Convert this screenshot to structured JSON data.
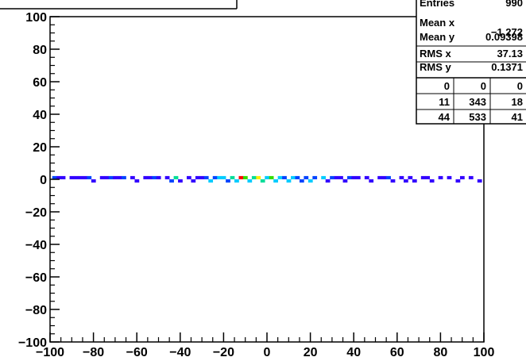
{
  "chart_data": {
    "type": "heatmap",
    "title": "",
    "xlabel": "",
    "ylabel": "",
    "xlim": [
      -100,
      100
    ],
    "ylim": [
      -100,
      100
    ],
    "x_ticks": [
      -100,
      -80,
      -60,
      -40,
      -20,
      0,
      20,
      40,
      60,
      80,
      100
    ],
    "y_ticks": [
      -100,
      -80,
      -60,
      -40,
      -20,
      0,
      20,
      40,
      60,
      80,
      100
    ],
    "x_tick_labels": [
      "−100",
      "−80",
      "−60",
      "−40",
      "−20",
      "0",
      "20",
      "40",
      "60",
      "80",
      "100"
    ],
    "y_tick_labels": [
      "−100",
      "−80",
      "−60",
      "−40",
      "−20",
      "0",
      "20",
      "40",
      "60",
      "80",
      "100"
    ],
    "grid": false,
    "bin_width": 2,
    "bin_height": 2,
    "color_scale": [
      "#3300ff",
      "#0044ff",
      "#00ccff",
      "#00dd99",
      "#33dd00",
      "#ffee00",
      "#ff0000"
    ],
    "cells": [
      {
        "x": -98,
        "y": 1,
        "z": 2
      },
      {
        "x": -96,
        "y": 1,
        "z": 1
      },
      {
        "x": -94,
        "y": 1,
        "z": 1
      },
      {
        "x": -90,
        "y": 1,
        "z": 1
      },
      {
        "x": -88,
        "y": 1,
        "z": 1
      },
      {
        "x": -86,
        "y": 1,
        "z": 1
      },
      {
        "x": -84,
        "y": 1,
        "z": 1
      },
      {
        "x": -82,
        "y": 1,
        "z": 2
      },
      {
        "x": -80,
        "y": -1,
        "z": 1
      },
      {
        "x": -76,
        "y": 1,
        "z": 1
      },
      {
        "x": -74,
        "y": 1,
        "z": 1
      },
      {
        "x": -72,
        "y": 1,
        "z": 2
      },
      {
        "x": -70,
        "y": 1,
        "z": 1
      },
      {
        "x": -68,
        "y": 1,
        "z": 1
      },
      {
        "x": -66,
        "y": 1,
        "z": 2
      },
      {
        "x": -62,
        "y": 1,
        "z": 1
      },
      {
        "x": -60,
        "y": -1,
        "z": 1
      },
      {
        "x": -56,
        "y": 1,
        "z": 1
      },
      {
        "x": -54,
        "y": 1,
        "z": 1
      },
      {
        "x": -52,
        "y": 1,
        "z": 2
      },
      {
        "x": -50,
        "y": 1,
        "z": 1
      },
      {
        "x": -46,
        "y": 1,
        "z": 1
      },
      {
        "x": -44,
        "y": -1,
        "z": 2
      },
      {
        "x": -42,
        "y": 1,
        "z": 4
      },
      {
        "x": -40,
        "y": -1,
        "z": 1
      },
      {
        "x": -36,
        "y": 1,
        "z": 1
      },
      {
        "x": -34,
        "y": -1,
        "z": 1
      },
      {
        "x": -32,
        "y": 1,
        "z": 1
      },
      {
        "x": -30,
        "y": 1,
        "z": 1
      },
      {
        "x": -28,
        "y": 1,
        "z": 2
      },
      {
        "x": -26,
        "y": -1,
        "z": 3
      },
      {
        "x": -24,
        "y": 1,
        "z": 2
      },
      {
        "x": -22,
        "y": 1,
        "z": 3
      },
      {
        "x": -20,
        "y": 1,
        "z": 3
      },
      {
        "x": -18,
        "y": -1,
        "z": 2
      },
      {
        "x": -16,
        "y": 1,
        "z": 4
      },
      {
        "x": -14,
        "y": -1,
        "z": 3
      },
      {
        "x": -12,
        "y": 1,
        "z": 7
      },
      {
        "x": -10,
        "y": 1,
        "z": 5
      },
      {
        "x": -8,
        "y": -1,
        "z": 3
      },
      {
        "x": -6,
        "y": 1,
        "z": 4
      },
      {
        "x": -4,
        "y": 1,
        "z": 6
      },
      {
        "x": -2,
        "y": -1,
        "z": 4
      },
      {
        "x": 0,
        "y": 1,
        "z": 3
      },
      {
        "x": 2,
        "y": 1,
        "z": 5
      },
      {
        "x": 4,
        "y": -1,
        "z": 3
      },
      {
        "x": 6,
        "y": 1,
        "z": 3
      },
      {
        "x": 8,
        "y": 1,
        "z": 2
      },
      {
        "x": 10,
        "y": -1,
        "z": 3
      },
      {
        "x": 12,
        "y": 1,
        "z": 3
      },
      {
        "x": 14,
        "y": 1,
        "z": 2
      },
      {
        "x": 16,
        "y": -1,
        "z": 2
      },
      {
        "x": 18,
        "y": 1,
        "z": 2
      },
      {
        "x": 20,
        "y": -1,
        "z": 3
      },
      {
        "x": 22,
        "y": 1,
        "z": 2
      },
      {
        "x": 26,
        "y": 1,
        "z": 3
      },
      {
        "x": 28,
        "y": -1,
        "z": 1
      },
      {
        "x": 30,
        "y": 1,
        "z": 2
      },
      {
        "x": 32,
        "y": 1,
        "z": 1
      },
      {
        "x": 34,
        "y": 1,
        "z": 1
      },
      {
        "x": 36,
        "y": -1,
        "z": 1
      },
      {
        "x": 38,
        "y": 1,
        "z": 2
      },
      {
        "x": 40,
        "y": 1,
        "z": 1
      },
      {
        "x": 42,
        "y": 1,
        "z": 1
      },
      {
        "x": 46,
        "y": 1,
        "z": 1
      },
      {
        "x": 48,
        "y": -1,
        "z": 1
      },
      {
        "x": 52,
        "y": 1,
        "z": 1
      },
      {
        "x": 54,
        "y": 1,
        "z": 1
      },
      {
        "x": 56,
        "y": 1,
        "z": 2
      },
      {
        "x": 58,
        "y": -1,
        "z": 1
      },
      {
        "x": 62,
        "y": 1,
        "z": 1
      },
      {
        "x": 64,
        "y": -1,
        "z": 1
      },
      {
        "x": 66,
        "y": 1,
        "z": 1
      },
      {
        "x": 68,
        "y": -1,
        "z": 1
      },
      {
        "x": 72,
        "y": 1,
        "z": 1
      },
      {
        "x": 74,
        "y": 1,
        "z": 1
      },
      {
        "x": 76,
        "y": -1,
        "z": 1
      },
      {
        "x": 80,
        "y": 1,
        "z": 1
      },
      {
        "x": 84,
        "y": 1,
        "z": 1
      },
      {
        "x": 88,
        "y": -1,
        "z": 1
      },
      {
        "x": 90,
        "y": 1,
        "z": 1
      },
      {
        "x": 94,
        "y": 1,
        "z": 1
      },
      {
        "x": 98,
        "y": -1,
        "z": 1
      }
    ]
  },
  "stats": {
    "entries_label": "Entries",
    "entries_value": "990",
    "rows": [
      {
        "label": "Mean x",
        "value": "−1.272"
      },
      {
        "label": "Mean y",
        "value": "0.09398"
      },
      {
        "label": "RMS x",
        "value": "37.13"
      },
      {
        "label": "RMS y",
        "value": "0.1371"
      }
    ],
    "overflow": [
      [
        "0",
        "0",
        "0"
      ],
      [
        "11",
        "343",
        "18"
      ],
      [
        "44",
        "533",
        "41"
      ]
    ]
  }
}
